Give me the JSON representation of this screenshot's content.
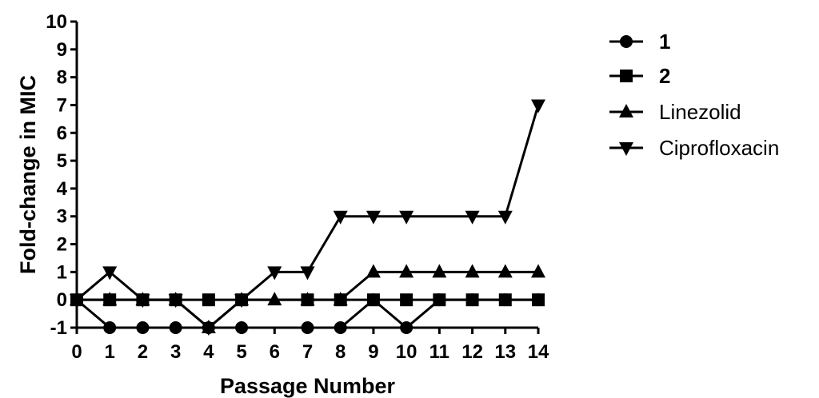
{
  "chart_data": {
    "type": "line",
    "xlabel": "Passage Number",
    "ylabel": "Fold-change in MIC",
    "x": [
      0,
      1,
      2,
      3,
      4,
      5,
      6,
      7,
      8,
      9,
      10,
      11,
      12,
      13,
      14
    ],
    "xlim": [
      0,
      14
    ],
    "ylim": [
      -1,
      10
    ],
    "xticks": [
      "0",
      "1",
      "2",
      "3",
      "4",
      "5",
      "6",
      "7",
      "8",
      "9",
      "10",
      "11",
      "12",
      "13",
      "14"
    ],
    "yticks": [
      "-1",
      "0",
      "1",
      "2",
      "3",
      "4",
      "5",
      "6",
      "7",
      "8",
      "9",
      "10"
    ],
    "grid": false,
    "legend_position": "right",
    "series": [
      {
        "name": "1",
        "marker": "circle",
        "color": "#000000",
        "x": [
          0,
          1,
          2,
          3,
          4,
          5,
          7,
          8,
          9,
          10,
          11,
          12,
          13,
          14
        ],
        "values": [
          0,
          -1,
          -1,
          -1,
          -1,
          -1,
          -1,
          -1,
          0,
          -1,
          0,
          0,
          0,
          0
        ]
      },
      {
        "name": "2",
        "marker": "square",
        "color": "#000000",
        "x": [
          0,
          1,
          2,
          3,
          4,
          5,
          7,
          8,
          9,
          10,
          11,
          12,
          13,
          14
        ],
        "values": [
          0,
          0,
          0,
          0,
          0,
          0,
          0,
          0,
          0,
          0,
          0,
          0,
          0,
          0
        ]
      },
      {
        "name": "Linezolid",
        "marker": "triangle-up",
        "color": "#000000",
        "x": [
          0,
          1,
          2,
          3,
          4,
          5,
          6,
          7,
          8,
          9,
          10,
          11,
          12,
          13,
          14
        ],
        "values": [
          0,
          0,
          0,
          0,
          -1,
          0,
          0,
          0,
          0,
          1,
          1,
          1,
          1,
          1,
          1
        ]
      },
      {
        "name": "Ciprofloxacin",
        "marker": "triangle-down",
        "color": "#000000",
        "x": [
          0,
          1,
          2,
          3,
          4,
          5,
          6,
          7,
          8,
          9,
          10,
          12,
          13,
          14
        ],
        "values": [
          0,
          1,
          0,
          0,
          -1,
          0,
          1,
          1,
          3,
          3,
          3,
          3,
          3,
          7
        ]
      }
    ]
  }
}
